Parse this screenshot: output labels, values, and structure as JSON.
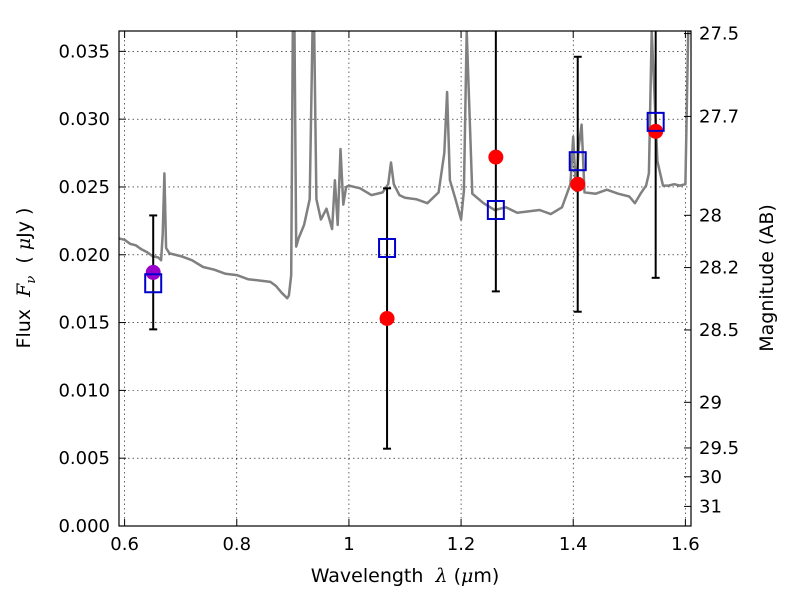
{
  "chart_data": {
    "type": "scatter",
    "xlabel_prefix": "Wavelength  ",
    "xlabel_symbol": "λ",
    "xlabel_unit_open": " (",
    "xlabel_unit_mu": "μ",
    "xlabel_unit_close": "m)",
    "ylabel_prefix": "Flux  ",
    "ylabel_symbol": "F",
    "ylabel_sub": "ν",
    "ylabel_unit_open": "  ( ",
    "ylabel_unit_mu": "μ",
    "ylabel_unit_close": "Jy )",
    "y2label": "Magnitude (AB)",
    "xlim": [
      0.59,
      1.61
    ],
    "ylim": [
      0.0,
      0.0365
    ],
    "grid": true,
    "xticks": [
      0.6,
      0.8,
      1.0,
      1.2,
      1.4,
      1.6
    ],
    "xtick_labels": [
      "0.6",
      "0.8",
      "1",
      "1.2",
      "1.4",
      "1.6"
    ],
    "yticks": [
      0.0,
      0.005,
      0.01,
      0.015,
      0.02,
      0.025,
      0.03,
      0.035
    ],
    "ytick_labels": [
      "0.000",
      "0.005",
      "0.010",
      "0.015",
      "0.020",
      "0.025",
      "0.030",
      "0.035"
    ],
    "y2ticks": [
      27.5,
      27.7,
      28,
      28.2,
      28.5,
      29,
      29.5,
      30,
      31
    ],
    "y2tick_labels": [
      "27.5",
      "27.7",
      "28",
      "28.2",
      "28.5",
      "29",
      "29.5",
      "30",
      "31"
    ],
    "colors": {
      "sed": "#808080",
      "observed": "#ff0000",
      "observed_first": "#9900cc",
      "model": "#0000cc",
      "errorbar": "#000000"
    },
    "series": [
      {
        "kind": "line",
        "x": [
          0.59,
          0.6,
          0.61,
          0.62,
          0.63,
          0.64,
          0.65,
          0.66,
          0.665,
          0.668,
          0.671,
          0.674,
          0.68,
          0.7,
          0.72,
          0.74,
          0.76,
          0.78,
          0.8,
          0.82,
          0.84,
          0.86,
          0.87,
          0.88,
          0.89,
          0.893,
          0.897,
          0.9,
          0.903,
          0.906,
          0.91,
          0.92,
          0.93,
          0.935,
          0.938,
          0.942,
          0.95,
          0.96,
          0.97,
          0.975,
          0.98,
          0.985,
          0.99,
          0.995,
          1.0,
          1.02,
          1.04,
          1.06,
          1.07,
          1.075,
          1.08,
          1.09,
          1.1,
          1.12,
          1.14,
          1.16,
          1.17,
          1.175,
          1.18,
          1.19,
          1.2,
          1.205,
          1.21,
          1.22,
          1.24,
          1.26,
          1.28,
          1.3,
          1.32,
          1.34,
          1.36,
          1.38,
          1.395,
          1.4,
          1.405,
          1.41,
          1.415,
          1.42,
          1.44,
          1.46,
          1.48,
          1.5,
          1.51,
          1.52,
          1.53,
          1.535,
          1.54,
          1.55,
          1.56,
          1.57,
          1.58,
          1.59,
          1.6,
          1.605,
          1.61
        ],
        "y": [
          0.0212,
          0.0211,
          0.0208,
          0.0207,
          0.0204,
          0.0202,
          0.0199,
          0.0198,
          0.0196,
          0.0215,
          0.026,
          0.0205,
          0.0201,
          0.0199,
          0.0196,
          0.0191,
          0.0189,
          0.0186,
          0.0185,
          0.0182,
          0.0181,
          0.018,
          0.0177,
          0.0172,
          0.0168,
          0.017,
          0.0185,
          0.0365,
          0.0365,
          0.0206,
          0.0212,
          0.0222,
          0.0241,
          0.0365,
          0.0365,
          0.0241,
          0.0226,
          0.0234,
          0.0219,
          0.0255,
          0.0222,
          0.0278,
          0.0237,
          0.025,
          0.0251,
          0.0249,
          0.0244,
          0.0246,
          0.0252,
          0.0268,
          0.0252,
          0.0244,
          0.0242,
          0.0241,
          0.0238,
          0.0246,
          0.0275,
          0.032,
          0.0255,
          0.0241,
          0.0226,
          0.0247,
          0.0365,
          0.0245,
          0.0238,
          0.0233,
          0.0235,
          0.0231,
          0.0232,
          0.0233,
          0.023,
          0.0235,
          0.0252,
          0.0287,
          0.0247,
          0.028,
          0.0296,
          0.0246,
          0.0245,
          0.0248,
          0.0245,
          0.0243,
          0.0238,
          0.0245,
          0.0251,
          0.026,
          0.0365,
          0.0269,
          0.0251,
          0.0251,
          0.0252,
          0.0251,
          0.0252,
          0.0365,
          0.0365
        ]
      },
      {
        "kind": "observed",
        "x": [
          0.651,
          1.068,
          1.262,
          1.408,
          1.547
        ],
        "y": [
          0.0187,
          0.0153,
          0.0272,
          0.0252,
          0.0291
        ],
        "yerr": [
          0.0042,
          0.0096,
          0.0099,
          0.0094,
          0.0108
        ]
      },
      {
        "kind": "model",
        "x": [
          0.651,
          1.068,
          1.262,
          1.408,
          1.547
        ],
        "y": [
          0.0179,
          0.0205,
          0.0233,
          0.0269,
          0.0298
        ]
      }
    ]
  }
}
